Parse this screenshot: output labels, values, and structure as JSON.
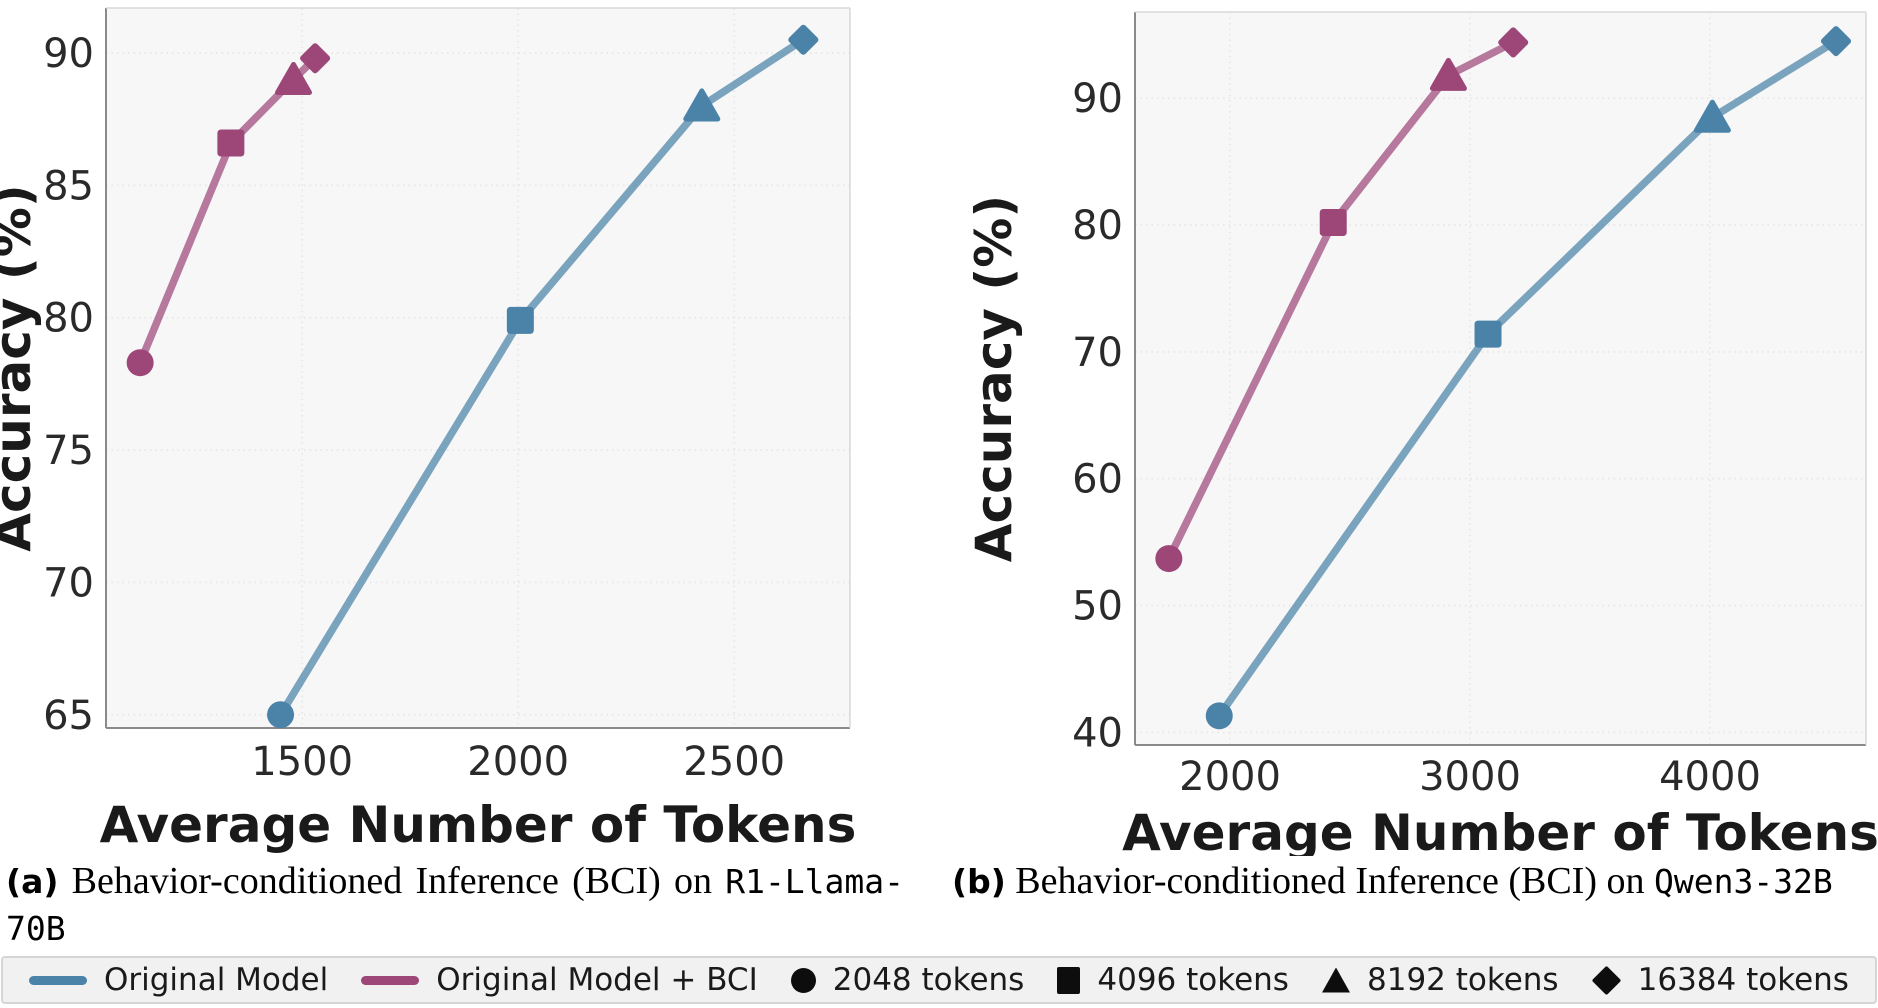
{
  "figure": {
    "background": "#ffffff",
    "plot_background": "#f7f7f8",
    "grid_color": "#e8e8ea",
    "blue": "#4a82a8",
    "purple": "#9d4678",
    "token_budgets": [
      2048,
      4096,
      8192,
      16384
    ],
    "marker_shapes": [
      "circle",
      "square",
      "triangle",
      "diamond"
    ]
  },
  "chart_data": [
    {
      "type": "line",
      "xlabel": "Average Number of Tokens",
      "ylabel": "Accuracy (%)",
      "xticks": [
        1500,
        2000,
        2500
      ],
      "yticks": [
        65,
        70,
        75,
        80,
        85,
        90
      ],
      "xlim": [
        1046,
        2768
      ],
      "ylim": [
        64.5,
        91.7
      ],
      "grid": true,
      "legend_position": "bottom-shared",
      "series": [
        {
          "name": "Original Model",
          "color": "#4a82a8",
          "points": [
            [
              1450,
              65.0
            ],
            [
              2005,
              79.9
            ],
            [
              2425,
              88.0
            ],
            [
              2660,
              90.5
            ]
          ]
        },
        {
          "name": "Original Model + BCI",
          "color": "#9d4678",
          "points": [
            [
              1125,
              78.3
            ],
            [
              1335,
              86.6
            ],
            [
              1480,
              89.0
            ],
            [
              1530,
              89.8
            ]
          ]
        }
      ],
      "caption": {
        "label": "(a)",
        "text": "Behavior-conditioned Inference (BCI) on",
        "model": "R1-Llama-70B"
      }
    },
    {
      "type": "line",
      "xlabel": "Average Number of Tokens",
      "ylabel": "Accuracy (%)",
      "xticks": [
        2000,
        3000,
        4000
      ],
      "yticks": [
        40,
        50,
        60,
        70,
        80,
        90
      ],
      "xlim": [
        1604,
        4650
      ],
      "ylim": [
        39.0,
        96.8
      ],
      "grid": true,
      "legend_position": "bottom-shared",
      "series": [
        {
          "name": "Original Model",
          "color": "#4a82a8",
          "points": [
            [
              1955,
              41.3
            ],
            [
              3075,
              71.4
            ],
            [
              4010,
              88.5
            ],
            [
              4525,
              94.5
            ]
          ]
        },
        {
          "name": "Original Model + BCI",
          "color": "#9d4678",
          "points": [
            [
              1745,
              53.7
            ],
            [
              2430,
              80.2
            ],
            [
              2910,
              91.8
            ],
            [
              3180,
              94.4
            ]
          ]
        }
      ],
      "caption": {
        "label": "(b)",
        "text": "Behavior-conditioned Inference (BCI) on",
        "model": "Qwen3-32B"
      }
    }
  ],
  "legend": {
    "items": [
      {
        "swatch": "line",
        "color": "#4a82a8",
        "label": "Original Model"
      },
      {
        "swatch": "line",
        "color": "#9d4678",
        "label": "Original Model + BCI"
      },
      {
        "swatch": "circle",
        "color": "#0d0d0d",
        "label": "2048 tokens"
      },
      {
        "swatch": "square",
        "color": "#0d0d0d",
        "label": "4096 tokens"
      },
      {
        "swatch": "triangle",
        "color": "#0d0d0d",
        "label": "8192 tokens"
      },
      {
        "swatch": "diamond",
        "color": "#0d0d0d",
        "label": "16384 tokens"
      }
    ]
  }
}
